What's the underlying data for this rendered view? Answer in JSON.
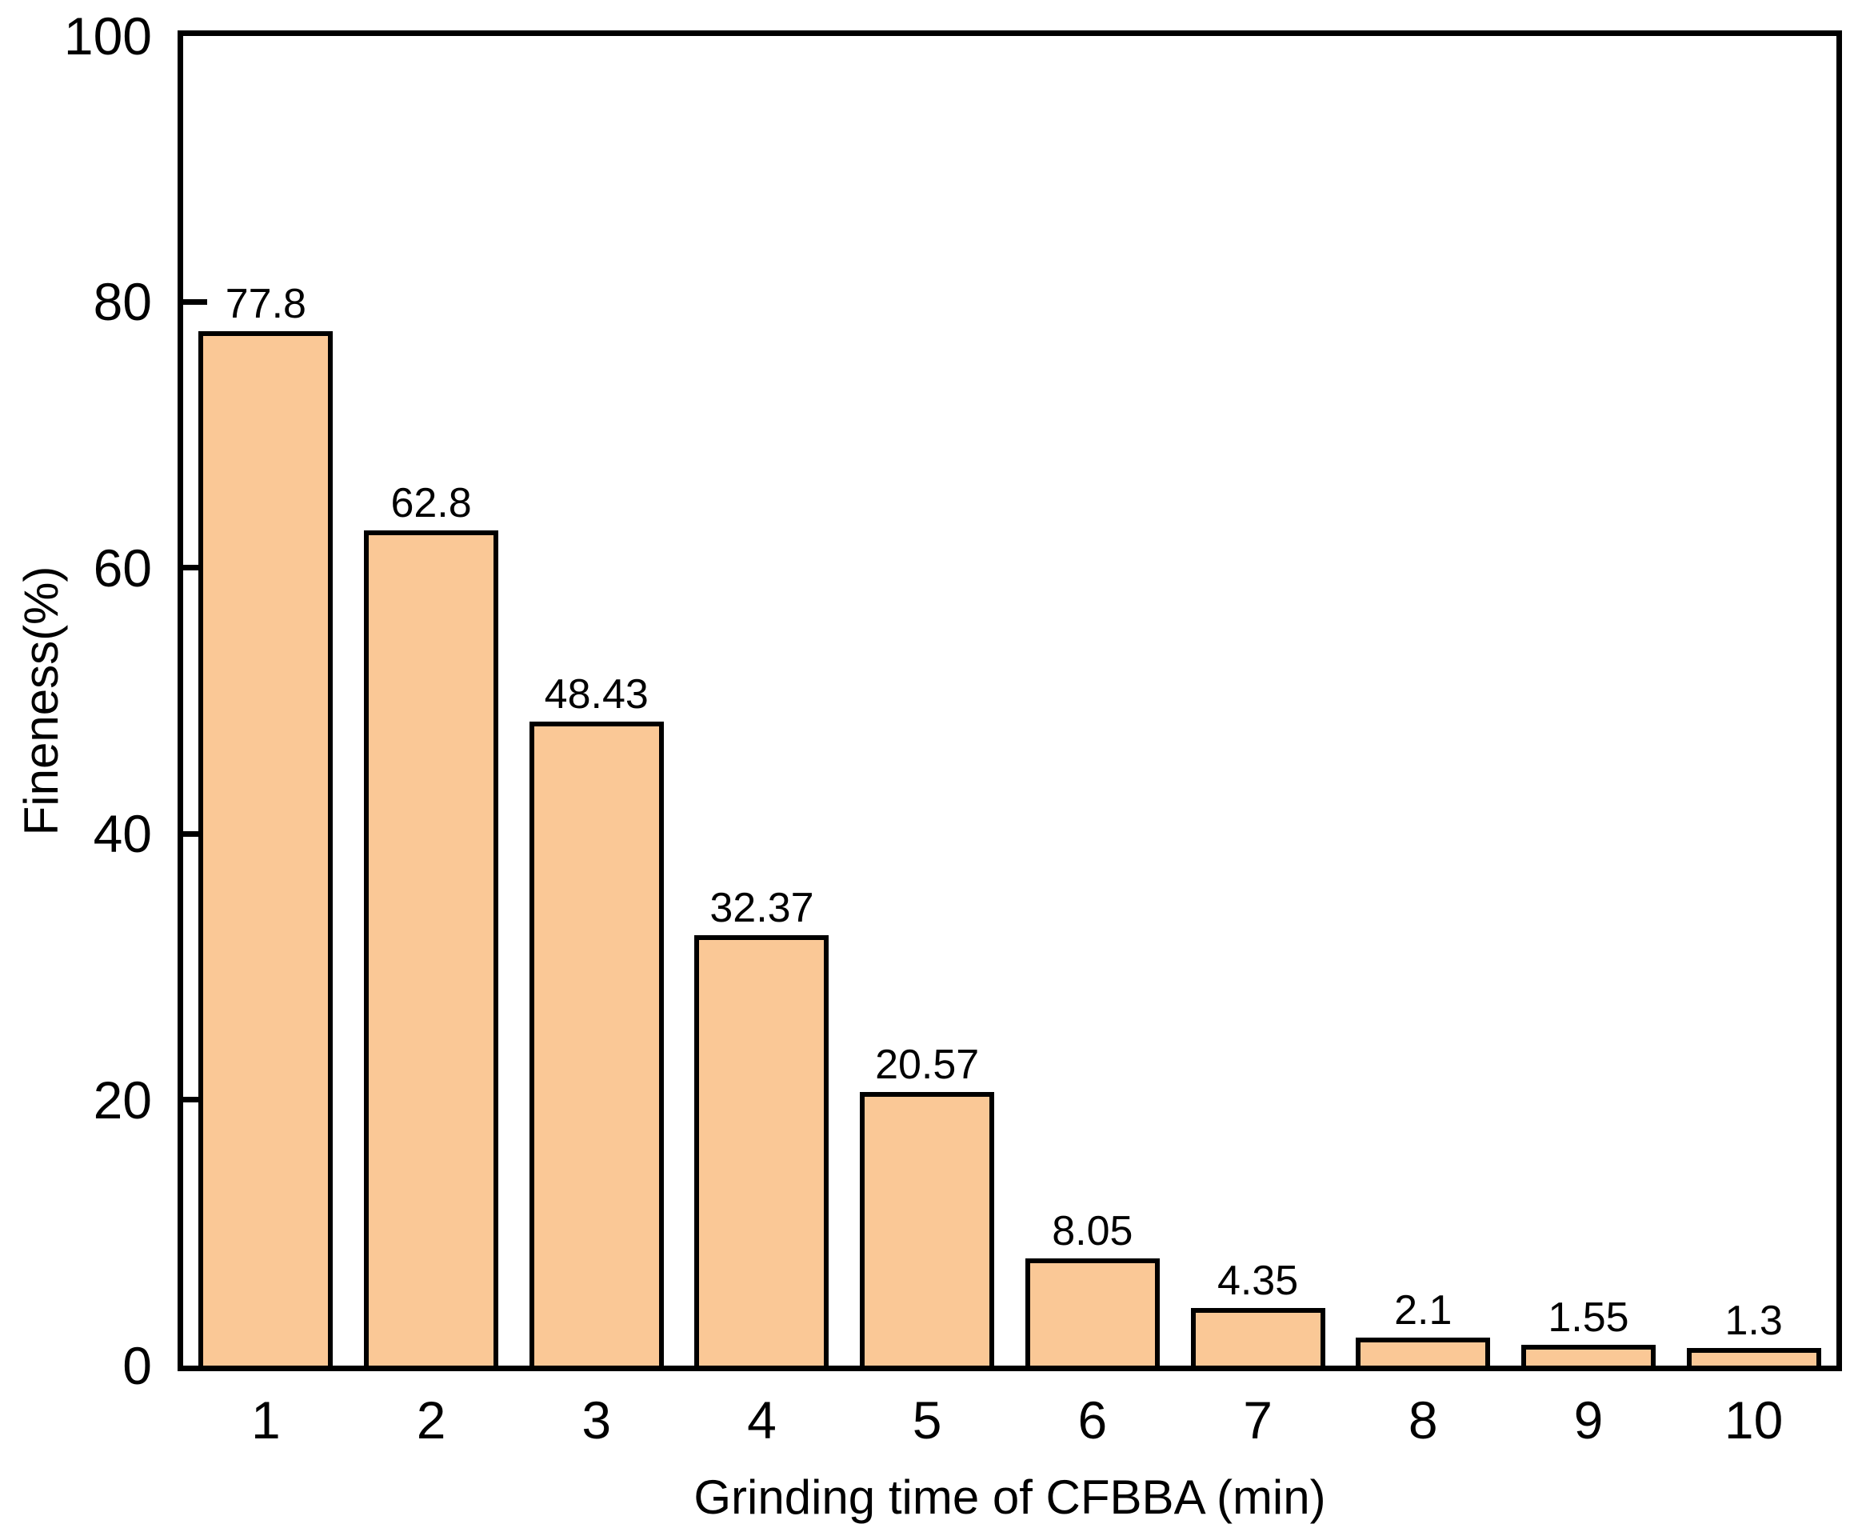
{
  "chart_data": {
    "type": "bar",
    "title": "",
    "xlabel": "Grinding time of CFBBA (min)",
    "ylabel": "Fineness(%)",
    "categories": [
      "1",
      "2",
      "3",
      "4",
      "5",
      "6",
      "7",
      "8",
      "9",
      "10"
    ],
    "values": [
      77.8,
      62.8,
      48.43,
      32.37,
      20.57,
      8.05,
      4.35,
      2.1,
      1.55,
      1.3
    ],
    "value_labels": [
      "77.8",
      "62.8",
      "48.43",
      "32.37",
      "20.57",
      "8.05",
      "4.35",
      "2.1",
      "1.55",
      "1.3"
    ],
    "ylim": [
      0,
      100
    ],
    "yticks": [
      0,
      20,
      40,
      60,
      80,
      100
    ],
    "grid": false,
    "legend_position": "none",
    "bar_color": "#FAC896",
    "bar_border_color": "#000000",
    "axis_color": "#000000",
    "background_color": "#FFFFFF"
  }
}
